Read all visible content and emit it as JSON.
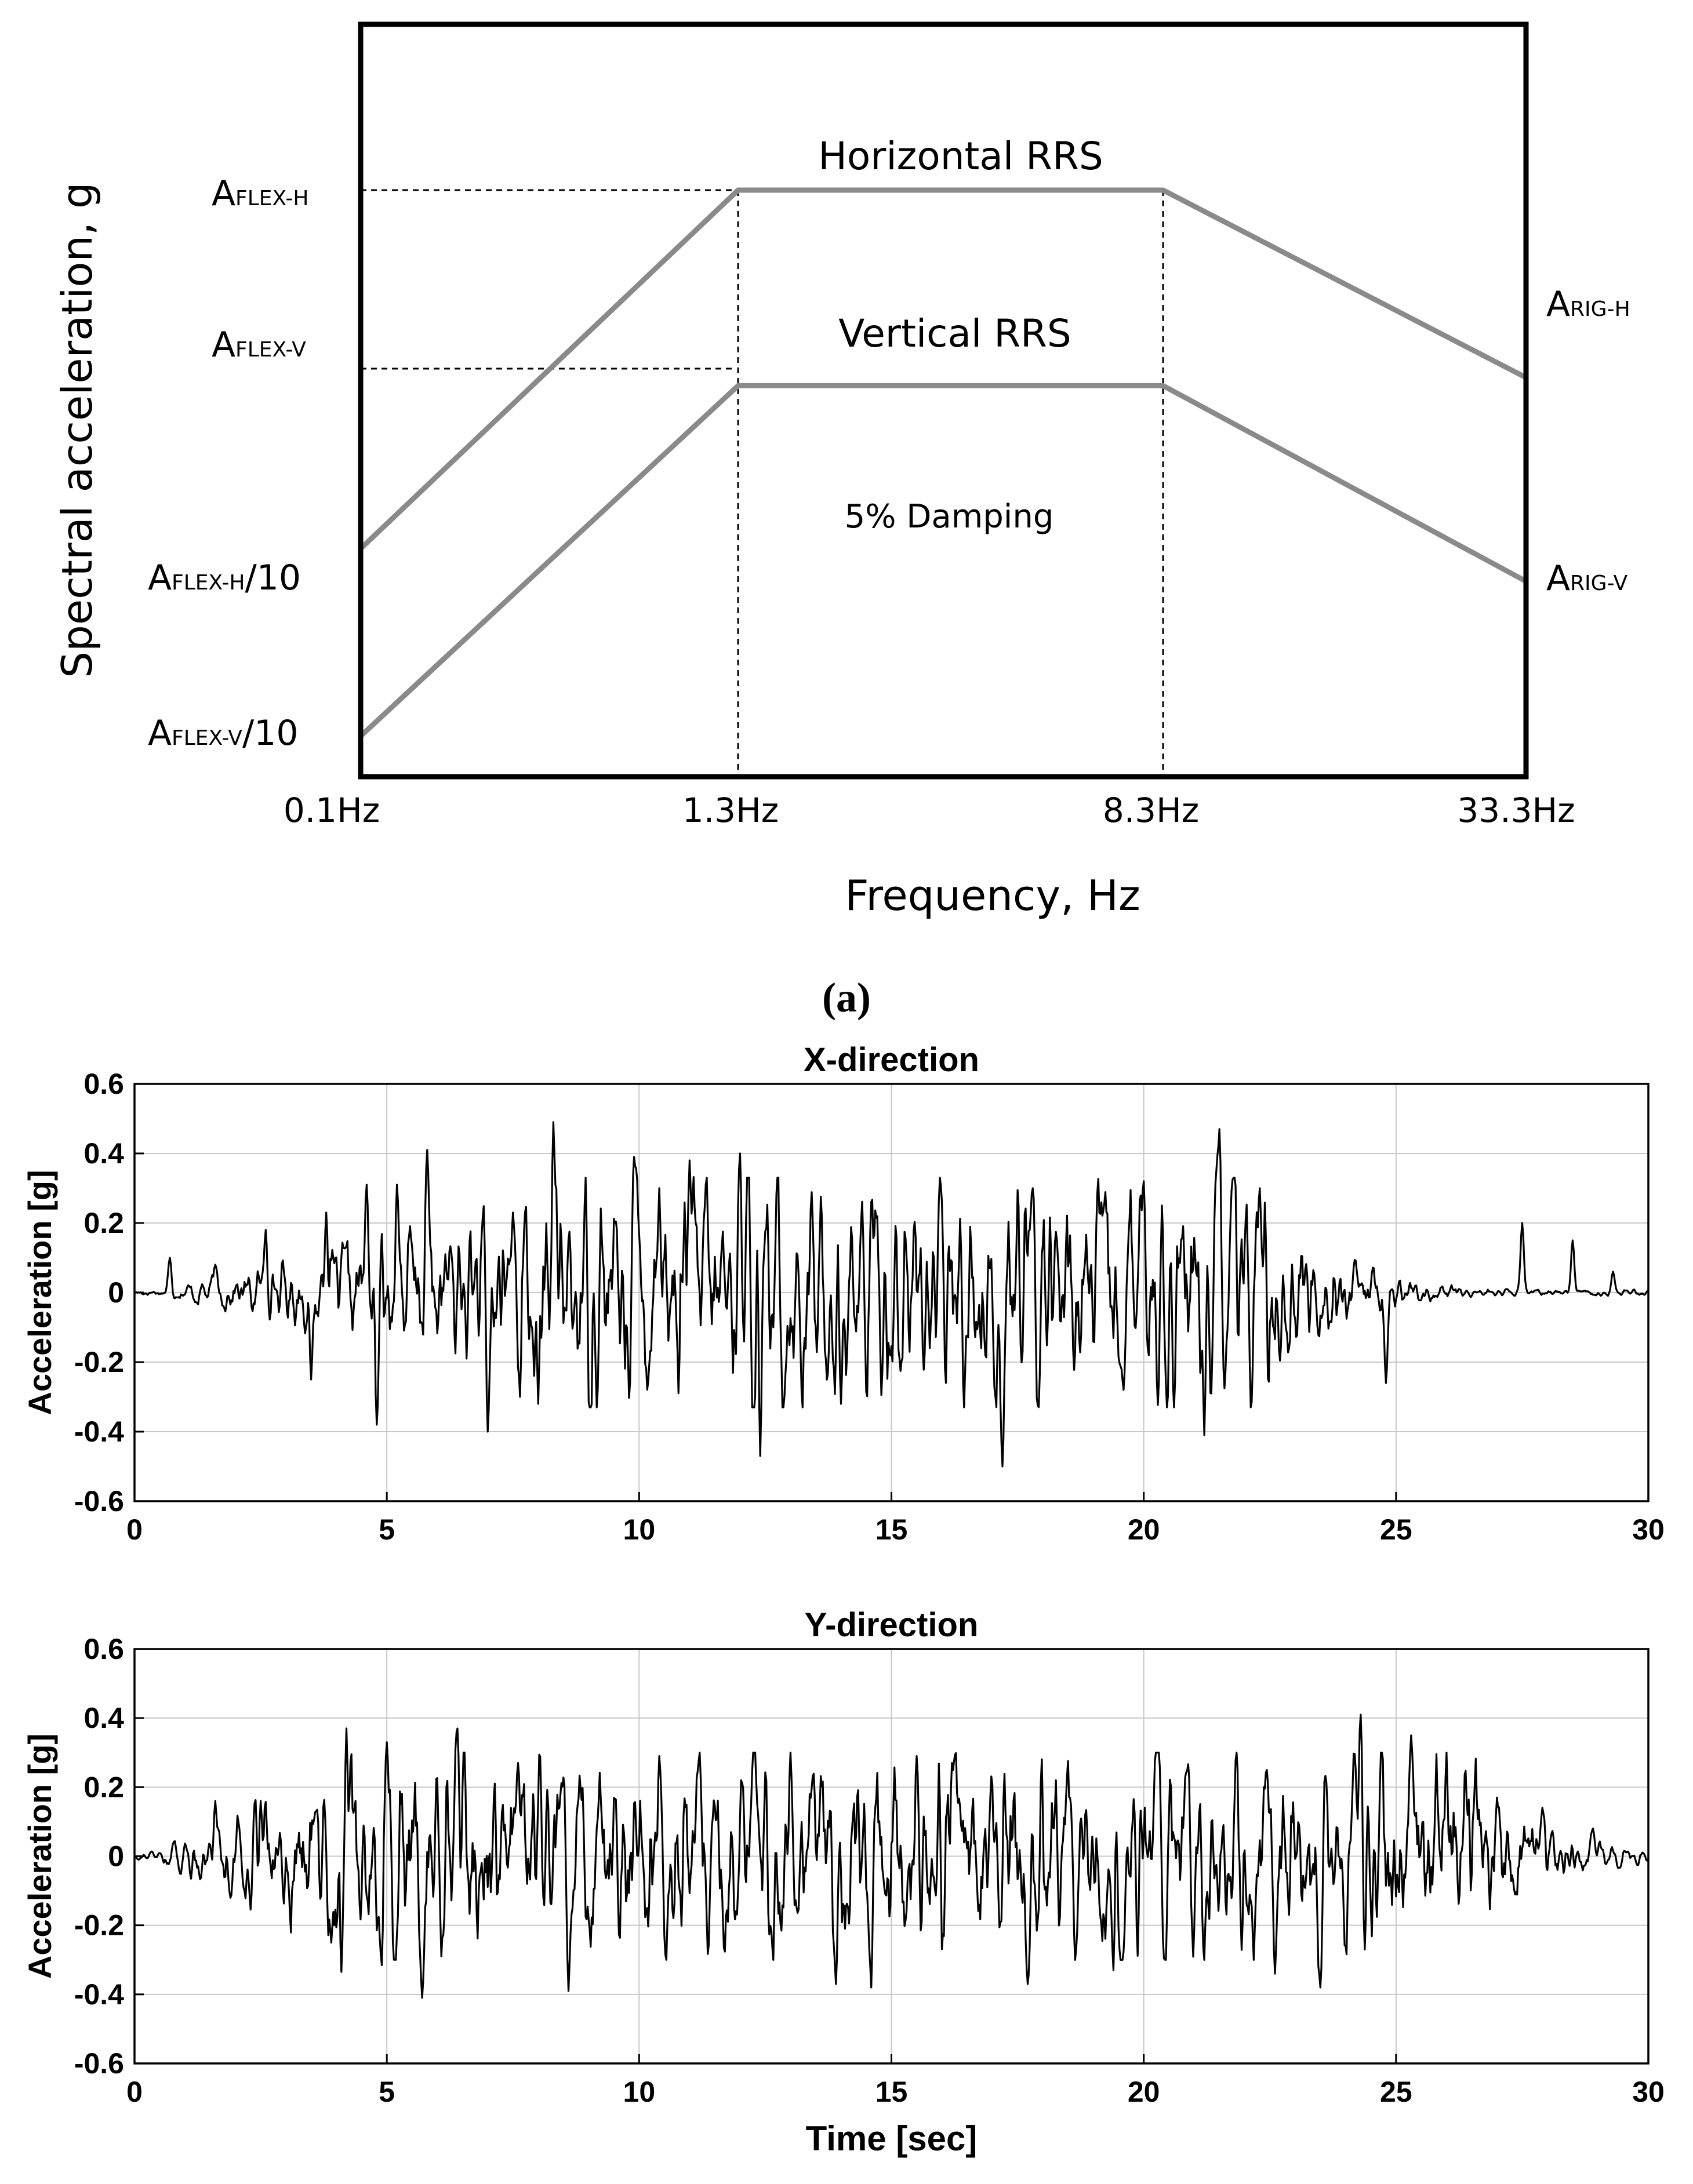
{
  "chart_data": [
    {
      "type": "line",
      "title": "",
      "xlabel": "Frequency, Hz",
      "ylabel": "Spectral acceleration, g",
      "caption": "(a)",
      "x_ticks": [
        "0.1Hz",
        "1.3Hz",
        "8.3Hz",
        "33.3Hz"
      ],
      "y_ticks": [
        "A_FLEX-H",
        "A_FLEX-V",
        "A_FLEX-H/10",
        "A_FLEX-V/10"
      ],
      "y_tick_parts": [
        {
          "main": "A",
          "sub": "FLEX-H",
          "suffix": ""
        },
        {
          "main": "A",
          "sub": "FLEX-V",
          "suffix": ""
        },
        {
          "main": "A",
          "sub": "FLEX-H",
          "suffix": "/10"
        },
        {
          "main": "A",
          "sub": "FLEX-V",
          "suffix": "/10"
        }
      ],
      "right_labels": [
        {
          "main": "A",
          "sub": "RIG-H"
        },
        {
          "main": "A",
          "sub": "RIG-V"
        }
      ],
      "annotation": "5% Damping",
      "series": [
        {
          "name": "Horizontal RRS",
          "x": [
            "0.1Hz",
            "1.3Hz",
            "8.3Hz",
            "33.3Hz"
          ],
          "y": [
            "A_FLEX-H/10",
            "A_FLEX-H",
            "A_FLEX-H",
            "A_RIG-H"
          ],
          "rel_level": [
            0.28,
            0.72,
            0.72,
            0.49
          ]
        },
        {
          "name": "Vertical RRS",
          "x": [
            "0.1Hz",
            "1.3Hz",
            "8.3Hz",
            "33.3Hz"
          ],
          "y": [
            "A_FLEX-V/10",
            "A_FLEX-V",
            "A_FLEX-V",
            "A_RIG-V"
          ],
          "rel_level": [
            0.05,
            0.48,
            0.48,
            0.24
          ]
        }
      ],
      "colors": {
        "series": "#8a8a8a",
        "frame": "#000000"
      }
    },
    {
      "type": "line",
      "title": "X-direction",
      "xlabel": "",
      "ylabel": "Acceleration [g]",
      "xlim": [
        0,
        30
      ],
      "ylim": [
        -0.6,
        0.6
      ],
      "x_ticks": [
        "0",
        "5",
        "10",
        "15",
        "20",
        "25",
        "30"
      ],
      "y_ticks": [
        "0.6",
        "0.4",
        "0.2",
        "0",
        "-0.2",
        "-0.4",
        "-0.6"
      ],
      "grid": true,
      "peaks": [
        {
          "t": 0.7,
          "a": 0.1
        },
        {
          "t": 1.6,
          "a": 0.08
        },
        {
          "t": 2.6,
          "a": 0.18
        },
        {
          "t": 3.5,
          "a": -0.25
        },
        {
          "t": 3.8,
          "a": 0.23
        },
        {
          "t": 4.6,
          "a": 0.31
        },
        {
          "t": 4.8,
          "a": -0.38
        },
        {
          "t": 5.2,
          "a": 0.31
        },
        {
          "t": 5.8,
          "a": 0.41
        },
        {
          "t": 7.0,
          "a": -0.4
        },
        {
          "t": 7.5,
          "a": 0.23
        },
        {
          "t": 8.0,
          "a": -0.32
        },
        {
          "t": 8.3,
          "a": 0.49
        },
        {
          "t": 9.9,
          "a": 0.39
        },
        {
          "t": 10.4,
          "a": 0.3
        },
        {
          "t": 11.0,
          "a": 0.38
        },
        {
          "t": 12.0,
          "a": 0.4
        },
        {
          "t": 12.4,
          "a": -0.47
        },
        {
          "t": 14.0,
          "a": -0.32
        },
        {
          "t": 17.2,
          "a": -0.5
        },
        {
          "t": 17.8,
          "a": 0.3
        },
        {
          "t": 19.6,
          "a": -0.28
        },
        {
          "t": 20.0,
          "a": 0.32
        },
        {
          "t": 20.6,
          "a": -0.33
        },
        {
          "t": 21.2,
          "a": -0.41
        },
        {
          "t": 21.5,
          "a": 0.47
        },
        {
          "t": 22.3,
          "a": 0.3
        },
        {
          "t": 24.8,
          "a": -0.26
        },
        {
          "t": 27.5,
          "a": 0.2
        },
        {
          "t": 28.5,
          "a": 0.15
        },
        {
          "t": 29.3,
          "a": 0.06
        }
      ],
      "envelope": {
        "ramp_up_end": 8.0,
        "decay_start": 22.5,
        "max_amp": 0.33,
        "seed": 17
      },
      "colors": {
        "line": "#000000",
        "grid": "#c8c8c8"
      }
    },
    {
      "type": "line",
      "title": "Y-direction",
      "xlabel": "Time [sec]",
      "ylabel": "Acceleration [g]",
      "xlim": [
        0,
        30
      ],
      "ylim": [
        -0.6,
        0.6
      ],
      "x_ticks": [
        "0",
        "5",
        "10",
        "15",
        "20",
        "25",
        "30"
      ],
      "y_ticks": [
        "0.6",
        "0.4",
        "0.2",
        "0",
        "-0.2",
        "-0.4",
        "-0.6"
      ],
      "grid": true,
      "peaks": [
        {
          "t": 1.6,
          "a": 0.16
        },
        {
          "t": 2.5,
          "a": 0.16
        },
        {
          "t": 3.9,
          "a": -0.25
        },
        {
          "t": 4.1,
          "a": -0.34
        },
        {
          "t": 4.2,
          "a": 0.37
        },
        {
          "t": 4.9,
          "a": -0.32
        },
        {
          "t": 5.0,
          "a": 0.33
        },
        {
          "t": 5.7,
          "a": -0.41
        },
        {
          "t": 6.4,
          "a": 0.37
        },
        {
          "t": 7.6,
          "a": 0.27
        },
        {
          "t": 8.6,
          "a": -0.39
        },
        {
          "t": 10.4,
          "a": 0.29
        },
        {
          "t": 11.2,
          "a": 0.3
        },
        {
          "t": 13.0,
          "a": 0.3
        },
        {
          "t": 13.9,
          "a": -0.37
        },
        {
          "t": 14.6,
          "a": -0.38
        },
        {
          "t": 15.5,
          "a": 0.29
        },
        {
          "t": 16.2,
          "a": 0.27
        },
        {
          "t": 17.7,
          "a": -0.37
        },
        {
          "t": 19.4,
          "a": -0.33
        },
        {
          "t": 20.3,
          "a": 0.3
        },
        {
          "t": 22.6,
          "a": -0.34
        },
        {
          "t": 23.5,
          "a": -0.38
        },
        {
          "t": 24.3,
          "a": 0.41
        },
        {
          "t": 25.3,
          "a": 0.35
        },
        {
          "t": 26.0,
          "a": 0.3
        },
        {
          "t": 27.0,
          "a": 0.17
        },
        {
          "t": 27.9,
          "a": 0.14
        },
        {
          "t": 28.9,
          "a": 0.08
        }
      ],
      "envelope": {
        "ramp_up_end": 4.0,
        "decay_start": 26.5,
        "max_amp": 0.3,
        "seed": 91
      },
      "colors": {
        "line": "#000000",
        "grid": "#c8c8c8"
      }
    }
  ]
}
